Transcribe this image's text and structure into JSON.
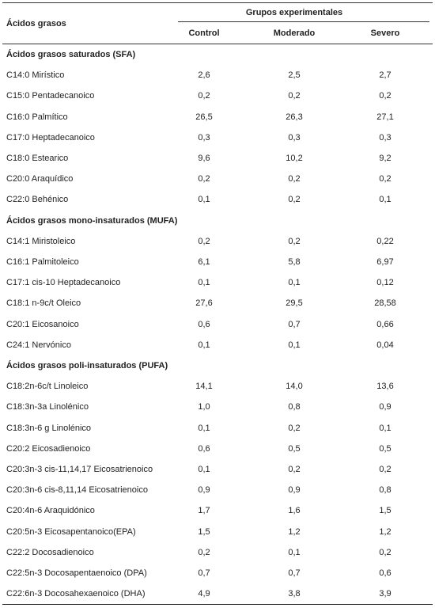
{
  "header": {
    "label_column": "Ácidos grasos",
    "group_title": "Grupos experimentales",
    "columns": [
      "Control",
      "Moderado",
      "Severo"
    ]
  },
  "sections": [
    {
      "title": "Ácidos grasos saturados (SFA)",
      "rows": [
        [
          "C14:0 Mirístico",
          "2,6",
          "2,5",
          "2,7"
        ],
        [
          "C15:0 Pentadecanoico",
          "0,2",
          "0,2",
          "0,2"
        ],
        [
          "C16:0 Palmítico",
          "26,5",
          "26,3",
          "27,1"
        ],
        [
          "C17:0 Heptadecanoico",
          "0,3",
          "0,3",
          "0,3"
        ],
        [
          "C18:0 Estearico",
          "9,6",
          "10,2",
          "9,2"
        ],
        [
          "C20:0 Araquídico",
          "0,2",
          "0,2",
          "0,2"
        ],
        [
          "C22:0 Behénico",
          "0,1",
          "0,2",
          "0,1"
        ]
      ]
    },
    {
      "title": "Ácidos grasos mono-insaturados (MUFA)",
      "rows": [
        [
          "C14:1 Miristoleico",
          "0,2",
          "0,2",
          "0,22"
        ],
        [
          "C16:1 Palmitoleico",
          "6,1",
          "5,8",
          "6,97"
        ],
        [
          "C17:1 cis-10 Heptadecanoico",
          "0,1",
          "0,1",
          "0,12"
        ],
        [
          "C18:1 n-9c/t Oleico",
          "27,6",
          "29,5",
          "28,58"
        ],
        [
          "C20:1 Eicosanoico",
          "0,6",
          "0,7",
          "0,66"
        ],
        [
          "C24:1 Nervónico",
          "0,1",
          "0,1",
          "0,04"
        ]
      ]
    },
    {
      "title": "Ácidos grasos poli-insaturados (PUFA)",
      "rows": [
        [
          "C18:2n-6c/t Linoleico",
          "14,1",
          "14,0",
          "13,6"
        ],
        [
          "C18:3n-3a Linolénico",
          "1,0",
          "0,8",
          "0,9"
        ],
        [
          "C18:3n-6 g Linolénico",
          "0,1",
          "0,2",
          "0,1"
        ],
        [
          "C20:2 Eicosadienoico",
          "0,6",
          "0,5",
          "0,5"
        ],
        [
          "C20:3n-3 cis-11,14,17 Eicosatrienoico",
          "0,1",
          "0,2",
          "0,2"
        ],
        [
          "C20:3n-6 cis-8,11,14 Eicosatrienoico",
          "0,9",
          "0,9",
          "0,8"
        ],
        [
          "C20:4n-6 Araquidónico",
          "1,7",
          "1,6",
          "1,5"
        ],
        [
          "C20:5n-3 Eicosapentanoico(EPA)",
          "1,5",
          "1,2",
          "1,2"
        ],
        [
          "C22:2 Docosadienoico",
          "0,2",
          "0,1",
          "0,2"
        ],
        [
          "C22:5n-3 Docosapentaenoico (DPA)",
          "0,7",
          "0,7",
          "0,6"
        ],
        [
          "C22:6n-3 Docosahexaenoico (DHA)",
          "4,9",
          "3,8",
          "3,9"
        ]
      ]
    }
  ]
}
